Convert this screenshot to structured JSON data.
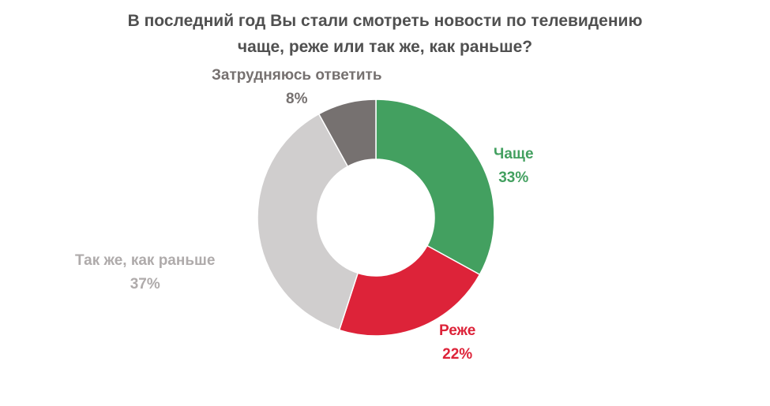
{
  "chart_data": {
    "type": "pie",
    "title_lines": [
      "В последний год Вы стали смотреть новости по телевидению",
      "чаще, реже или так же, как раньше?"
    ],
    "categories": [
      "Чаще",
      "Реже",
      "Так же, как раньше",
      "Затрудняюсь ответить"
    ],
    "values": [
      33,
      22,
      37,
      8
    ],
    "value_labels": [
      "33%",
      "22%",
      "37%",
      "8%"
    ],
    "colors": [
      "#43a060",
      "#dd2339",
      "#d0cece",
      "#767170"
    ],
    "label_colors": [
      "#43a060",
      "#dd2339",
      "#afabab",
      "#767170"
    ],
    "donut": true,
    "legend": "none"
  }
}
